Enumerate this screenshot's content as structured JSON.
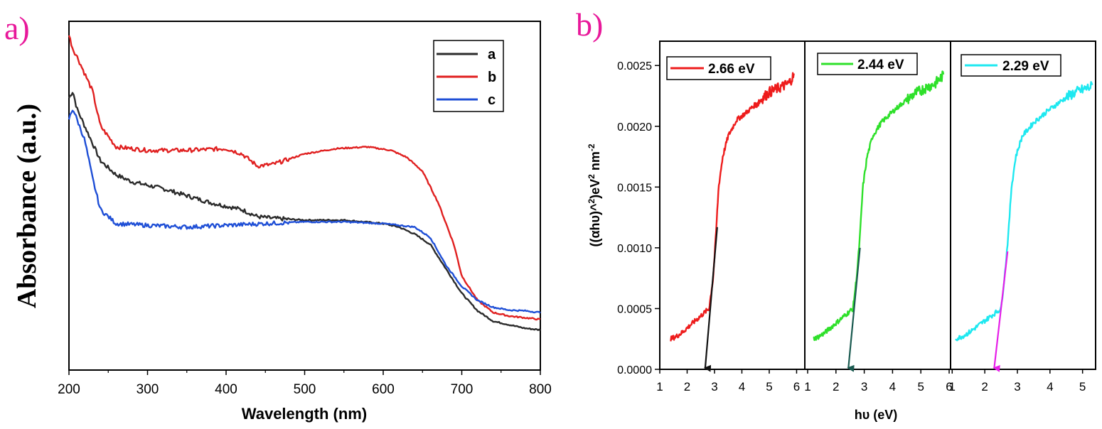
{
  "chart_data": [
    {
      "panel_label": "a)",
      "type": "line",
      "title": "",
      "xlabel": "Wavelength (nm)",
      "ylabel": "Absorbance (a.u.)",
      "xlim": [
        200,
        800
      ],
      "ylim": [
        0,
        1
      ],
      "x_ticks": [
        "200",
        "300",
        "400",
        "500",
        "600",
        "700",
        "800"
      ],
      "legend_position": "top-right",
      "series": [
        {
          "name": "a",
          "color": "#2b2b2b",
          "points": [
            [
              200,
              0.78
            ],
            [
              205,
              0.8
            ],
            [
              210,
              0.75
            ],
            [
              220,
              0.7
            ],
            [
              240,
              0.6
            ],
            [
              260,
              0.56
            ],
            [
              280,
              0.54
            ],
            [
              300,
              0.53
            ],
            [
              320,
              0.52
            ],
            [
              350,
              0.5
            ],
            [
              380,
              0.48
            ],
            [
              400,
              0.47
            ],
            [
              420,
              0.46
            ],
            [
              440,
              0.44
            ],
            [
              460,
              0.435
            ],
            [
              500,
              0.43
            ],
            [
              550,
              0.43
            ],
            [
              600,
              0.42
            ],
            [
              620,
              0.41
            ],
            [
              640,
              0.39
            ],
            [
              660,
              0.36
            ],
            [
              680,
              0.29
            ],
            [
              700,
              0.22
            ],
            [
              720,
              0.17
            ],
            [
              740,
              0.14
            ],
            [
              760,
              0.13
            ],
            [
              780,
              0.12
            ],
            [
              800,
              0.115
            ]
          ]
        },
        {
          "name": "b",
          "color": "#e02020",
          "points": [
            [
              200,
              0.96
            ],
            [
              205,
              0.92
            ],
            [
              210,
              0.9
            ],
            [
              220,
              0.85
            ],
            [
              230,
              0.8
            ],
            [
              240,
              0.7
            ],
            [
              260,
              0.64
            ],
            [
              300,
              0.63
            ],
            [
              350,
              0.63
            ],
            [
              400,
              0.635
            ],
            [
              420,
              0.62
            ],
            [
              440,
              0.585
            ],
            [
              460,
              0.59
            ],
            [
              500,
              0.62
            ],
            [
              540,
              0.635
            ],
            [
              580,
              0.64
            ],
            [
              610,
              0.63
            ],
            [
              630,
              0.61
            ],
            [
              650,
              0.57
            ],
            [
              670,
              0.48
            ],
            [
              690,
              0.36
            ],
            [
              700,
              0.27
            ],
            [
              720,
              0.2
            ],
            [
              740,
              0.165
            ],
            [
              760,
              0.155
            ],
            [
              780,
              0.15
            ],
            [
              800,
              0.145
            ]
          ]
        },
        {
          "name": "c",
          "color": "#1f4fd6",
          "points": [
            [
              200,
              0.72
            ],
            [
              205,
              0.75
            ],
            [
              210,
              0.72
            ],
            [
              220,
              0.66
            ],
            [
              230,
              0.55
            ],
            [
              240,
              0.46
            ],
            [
              260,
              0.42
            ],
            [
              300,
              0.415
            ],
            [
              350,
              0.41
            ],
            [
              400,
              0.415
            ],
            [
              450,
              0.42
            ],
            [
              500,
              0.425
            ],
            [
              550,
              0.425
            ],
            [
              600,
              0.42
            ],
            [
              640,
              0.41
            ],
            [
              660,
              0.38
            ],
            [
              680,
              0.3
            ],
            [
              700,
              0.24
            ],
            [
              720,
              0.2
            ],
            [
              740,
              0.18
            ],
            [
              760,
              0.172
            ],
            [
              780,
              0.17
            ],
            [
              800,
              0.165
            ]
          ]
        }
      ]
    },
    {
      "panel_label": "b)",
      "type": "line",
      "title": "",
      "xlabel": "hυ (eV)",
      "ylabel": "((αhυ)^2)eV2 nm-2",
      "ylabel_parts": [
        "((αhυ)^",
        "2",
        ")eV",
        "2",
        " nm",
        "-2"
      ],
      "ylim": [
        0,
        0.0027
      ],
      "y_ticks": [
        "0.0000",
        "0.0005",
        "0.0010",
        "0.0015",
        "0.0020",
        "0.0025"
      ],
      "y_tick_values": [
        0,
        0.0005,
        0.001,
        0.0015,
        0.002,
        0.0025
      ],
      "subplots": [
        {
          "legend": "2.66 eV",
          "color": "#ee1c1c",
          "tangent_color": "#111111",
          "xlim": [
            1,
            6.3
          ],
          "x_ticks": [
            "1",
            "2",
            "3",
            "4",
            "5",
            "6"
          ],
          "x_tick_values": [
            1,
            2,
            3,
            4,
            5,
            6
          ],
          "band_gap_eV": 2.66,
          "tangent_top": [
            3.1,
            0.00117
          ],
          "points": [
            [
              1.4,
              0.00025
            ],
            [
              1.6,
              0.00027
            ],
            [
              1.8,
              0.0003
            ],
            [
              2.0,
              0.00034
            ],
            [
              2.2,
              0.00038
            ],
            [
              2.4,
              0.00042
            ],
            [
              2.6,
              0.00046
            ],
            [
              2.8,
              0.0005
            ],
            [
              2.95,
              0.00075
            ],
            [
              3.05,
              0.0011
            ],
            [
              3.15,
              0.0015
            ],
            [
              3.3,
              0.00175
            ],
            [
              3.5,
              0.00192
            ],
            [
              3.8,
              0.00205
            ],
            [
              4.2,
              0.00212
            ],
            [
              4.6,
              0.0022
            ],
            [
              5.0,
              0.00228
            ],
            [
              5.4,
              0.00232
            ],
            [
              5.7,
              0.00235
            ],
            [
              5.9,
              0.00242
            ]
          ]
        },
        {
          "legend": "2.44 eV",
          "color": "#2ee02a",
          "tangent_color": "#1a5a50",
          "xlim": [
            0.9,
            6.05
          ],
          "x_ticks": [
            "1",
            "2",
            "3",
            "4",
            "5",
            "6"
          ],
          "x_tick_values": [
            1,
            2,
            3,
            4,
            5,
            6
          ],
          "band_gap_eV": 2.44,
          "tangent_top": [
            2.85,
            0.001
          ],
          "points": [
            [
              1.2,
              0.00025
            ],
            [
              1.4,
              0.00027
            ],
            [
              1.6,
              0.0003
            ],
            [
              1.8,
              0.00034
            ],
            [
              2.0,
              0.00038
            ],
            [
              2.2,
              0.00042
            ],
            [
              2.4,
              0.00046
            ],
            [
              2.6,
              0.0005
            ],
            [
              2.75,
              0.0008
            ],
            [
              2.85,
              0.0011
            ],
            [
              2.95,
              0.0015
            ],
            [
              3.1,
              0.00175
            ],
            [
              3.3,
              0.00192
            ],
            [
              3.6,
              0.00203
            ],
            [
              4.0,
              0.00212
            ],
            [
              4.4,
              0.0022
            ],
            [
              4.8,
              0.00227
            ],
            [
              5.2,
              0.00232
            ],
            [
              5.5,
              0.00235
            ],
            [
              5.8,
              0.00242
            ]
          ]
        },
        {
          "legend": "2.29 eV",
          "color": "#1ee8f0",
          "tangent_color": "#e61ee8",
          "xlim": [
            0.95,
            5.4
          ],
          "x_ticks": [
            "1",
            "2",
            "3",
            "4",
            "5"
          ],
          "x_tick_values": [
            1,
            2,
            3,
            4,
            5
          ],
          "band_gap_eV": 2.29,
          "tangent_top": [
            2.7,
            0.00097
          ],
          "points": [
            [
              1.1,
              0.00025
            ],
            [
              1.3,
              0.00027
            ],
            [
              1.5,
              0.0003
            ],
            [
              1.7,
              0.00034
            ],
            [
              1.9,
              0.00038
            ],
            [
              2.1,
              0.00042
            ],
            [
              2.3,
              0.00046
            ],
            [
              2.5,
              0.0005
            ],
            [
              2.62,
              0.0008
            ],
            [
              2.72,
              0.0011
            ],
            [
              2.82,
              0.0015
            ],
            [
              2.95,
              0.00175
            ],
            [
              3.15,
              0.00192
            ],
            [
              3.5,
              0.00203
            ],
            [
              3.9,
              0.00212
            ],
            [
              4.3,
              0.0022
            ],
            [
              4.7,
              0.00227
            ],
            [
              5.0,
              0.0023
            ],
            [
              5.3,
              0.00233
            ]
          ]
        }
      ]
    }
  ]
}
